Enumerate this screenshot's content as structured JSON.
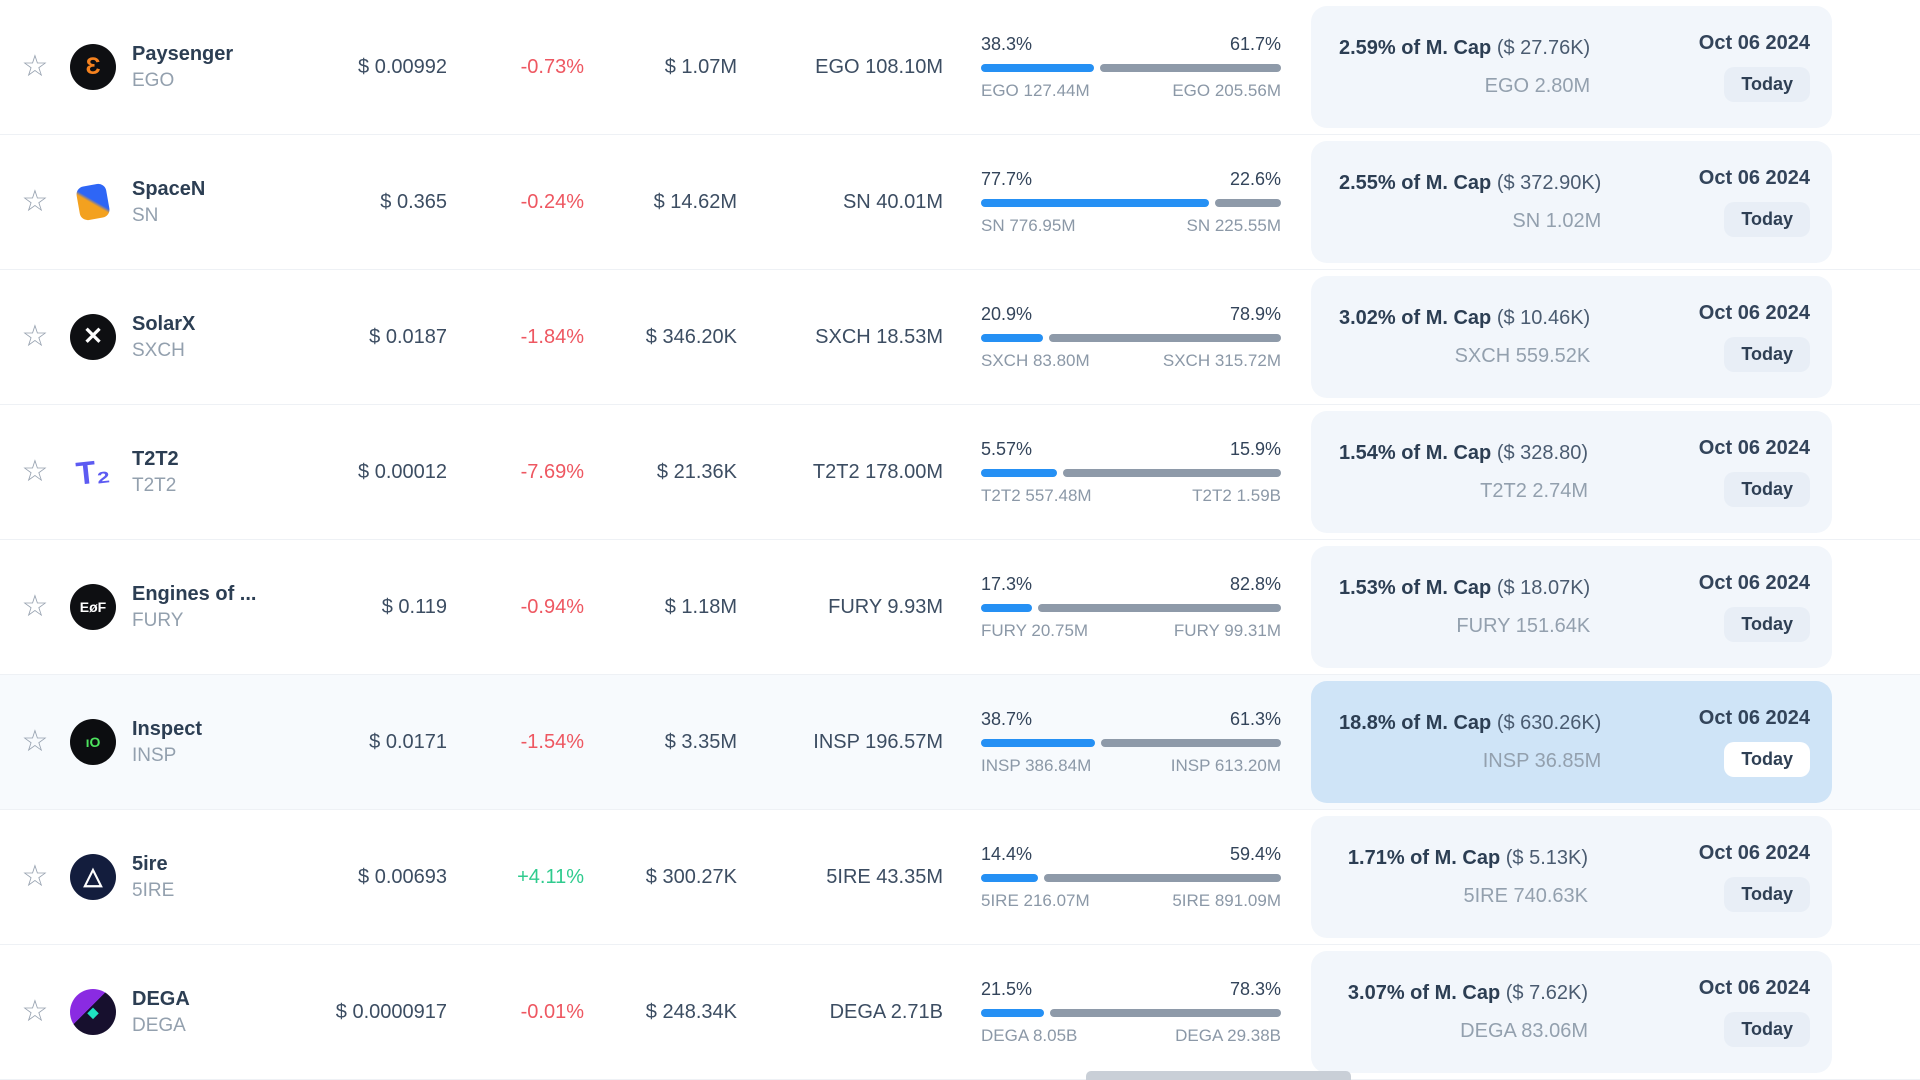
{
  "colors": {
    "accent_blue": "#2590f4",
    "bar_gray": "#8e9aa9",
    "positive": "#2fcb8e",
    "negative": "#ee5761",
    "panel_bg": "#f2f6fb",
    "panel_bg_highlight": "#cfe4f7"
  },
  "rows": [
    {
      "name": "Paysenger",
      "symbol": "EGO",
      "price": "$ 0.00992",
      "change": "-0.73%",
      "change_class": "neg",
      "value": "$ 1.07M",
      "amount": "EGO 108.10M",
      "unlock": {
        "left_pct": "38.3%",
        "right_pct": "61.7%",
        "left_amount": "EGO 127.44M",
        "right_amount": "EGO 205.56M",
        "left_num": 38.3,
        "right_num": 61.7
      },
      "mcap": {
        "headline": "2.59% of M. Cap",
        "usd": "($ 27.76K)",
        "amount": "EGO 2.80M"
      },
      "date": "Oct 06 2024",
      "badge": "Today",
      "row_class": "",
      "logo": {
        "glyph": "Ɛ",
        "bg": "#0e0f12",
        "fg": "#f5821f",
        "class": ""
      }
    },
    {
      "name": "SpaceN",
      "symbol": "SN",
      "price": "$ 0.365",
      "change": "-0.24%",
      "change_class": "neg",
      "value": "$ 14.62M",
      "amount": "SN 40.01M",
      "unlock": {
        "left_pct": "77.7%",
        "right_pct": "22.6%",
        "left_amount": "SN 776.95M",
        "right_amount": "SN 225.55M",
        "left_num": 77.7,
        "right_num": 22.6
      },
      "mcap": {
        "headline": "2.55% of M. Cap",
        "usd": "($ 372.90K)",
        "amount": "SN 1.02M"
      },
      "date": "Oct 06 2024",
      "badge": "Today",
      "row_class": "",
      "logo": {
        "glyph": "",
        "bg": "linear-gradient(40deg, #f3a11f 0 46%, #2e66f6 54% 100%)",
        "fg": "#ffffff",
        "class": "logo--sn"
      }
    },
    {
      "name": "SolarX",
      "symbol": "SXCH",
      "price": "$ 0.0187",
      "change": "-1.84%",
      "change_class": "neg",
      "value": "$ 346.20K",
      "amount": "SXCH 18.53M",
      "unlock": {
        "left_pct": "20.9%",
        "right_pct": "78.9%",
        "left_amount": "SXCH 83.80M",
        "right_amount": "SXCH 315.72M",
        "left_num": 20.9,
        "right_num": 78.9
      },
      "mcap": {
        "headline": "3.02% of M. Cap",
        "usd": "($ 10.46K)",
        "amount": "SXCH 559.52K"
      },
      "date": "Oct 06 2024",
      "badge": "Today",
      "row_class": "",
      "logo": {
        "glyph": "✕",
        "bg": "#0e0f12",
        "fg": "#ffffff",
        "class": ""
      }
    },
    {
      "name": "T2T2",
      "symbol": "T2T2",
      "price": "$ 0.00012",
      "change": "-7.69%",
      "change_class": "neg",
      "value": "$ 21.36K",
      "amount": "T2T2 178.00M",
      "unlock": {
        "left_pct": "5.57%",
        "right_pct": "15.9%",
        "left_amount": "T2T2 557.48M",
        "right_amount": "T2T2 1.59B",
        "left_num": 5.57,
        "right_num": 15.9
      },
      "mcap": {
        "headline": "1.54% of M. Cap",
        "usd": "($ 328.80)",
        "amount": "T2T2 2.74M"
      },
      "date": "Oct 06 2024",
      "badge": "Today",
      "row_class": "",
      "logo": {
        "glyph": "T₂",
        "bg": "transparent",
        "fg": "#5d5bf2",
        "class": "logo--plain"
      }
    },
    {
      "name": "Engines of ...",
      "symbol": "FURY",
      "price": "$ 0.119",
      "change": "-0.94%",
      "change_class": "neg",
      "value": "$ 1.18M",
      "amount": "FURY 9.93M",
      "unlock": {
        "left_pct": "17.3%",
        "right_pct": "82.8%",
        "left_amount": "FURY 20.75M",
        "right_amount": "FURY 99.31M",
        "left_num": 17.3,
        "right_num": 82.8
      },
      "mcap": {
        "headline": "1.53% of M. Cap",
        "usd": "($ 18.07K)",
        "amount": "FURY 151.64K"
      },
      "date": "Oct 06 2024",
      "badge": "Today",
      "row_class": "",
      "logo": {
        "glyph": "EøF",
        "bg": "#0e0f12",
        "fg": "#ffffff",
        "class": "logo--sm-text"
      }
    },
    {
      "name": "Inspect",
      "symbol": "INSP",
      "price": "$ 0.0171",
      "change": "-1.54%",
      "change_class": "neg",
      "value": "$ 3.35M",
      "amount": "INSP 196.57M",
      "unlock": {
        "left_pct": "38.7%",
        "right_pct": "61.3%",
        "left_amount": "INSP 386.84M",
        "right_amount": "INSP 613.20M",
        "left_num": 38.7,
        "right_num": 61.3
      },
      "mcap": {
        "headline": "18.8% of M. Cap",
        "usd": "($ 630.26K)",
        "amount": "INSP 36.85M"
      },
      "date": "Oct 06 2024",
      "badge": "Today",
      "row_class": "row--highlight",
      "logo": {
        "glyph": "ıO",
        "bg": "#0c0d10",
        "fg": "#4de35e",
        "class": "logo--sm-text"
      }
    },
    {
      "name": "5ire",
      "symbol": "5IRE",
      "price": "$ 0.00693",
      "change": "+4.11%",
      "change_class": "pos",
      "value": "$ 300.27K",
      "amount": "5IRE 43.35M",
      "unlock": {
        "left_pct": "14.4%",
        "right_pct": "59.4%",
        "left_amount": "5IRE 216.07M",
        "right_amount": "5IRE 891.09M",
        "left_num": 14.4,
        "right_num": 59.4
      },
      "mcap": {
        "headline": "1.71% of M. Cap",
        "usd": "($ 5.13K)",
        "amount": "5IRE 740.63K"
      },
      "date": "Oct 06 2024",
      "badge": "Today",
      "row_class": "",
      "logo": {
        "glyph": "△",
        "bg": "#131d3d",
        "fg": "#ffffff",
        "class": ""
      }
    },
    {
      "name": "DEGA",
      "symbol": "DEGA",
      "price": "$ 0.0000917",
      "change": "-0.01%",
      "change_class": "neg",
      "value": "$ 248.34K",
      "amount": "DEGA 2.71B",
      "unlock": {
        "left_pct": "21.5%",
        "right_pct": "78.3%",
        "left_amount": "DEGA 8.05B",
        "right_amount": "DEGA 29.38B",
        "left_num": 21.5,
        "right_num": 78.3
      },
      "mcap": {
        "headline": "3.07% of M. Cap",
        "usd": "($ 7.62K)",
        "amount": "DEGA 83.06M"
      },
      "date": "Oct 06 2024",
      "badge": "Today",
      "row_class": "",
      "logo": {
        "glyph": "◆",
        "bg": "linear-gradient(135deg, #8a2be2 0 42%, #17102e 42%)",
        "fg": "#1fe3c2",
        "class": "logo--sm-text"
      }
    }
  ]
}
